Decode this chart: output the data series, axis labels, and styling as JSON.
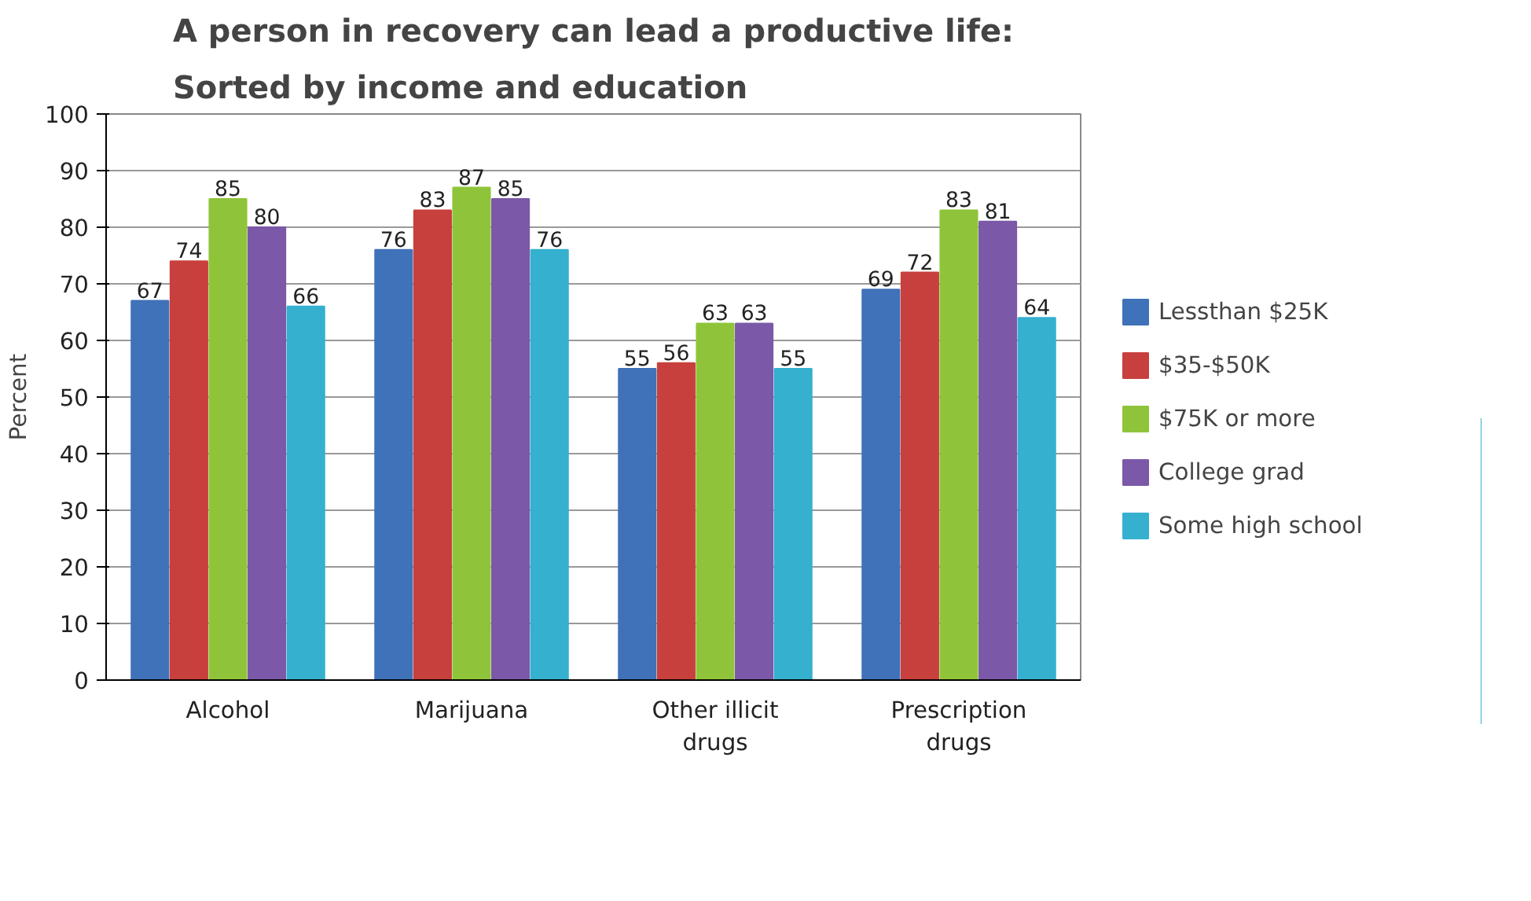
{
  "chart_data": {
    "type": "bar",
    "title": "A person in recovery can lead a productive life: Sorted by income and education",
    "ylabel": "Percent",
    "categories": [
      "Alcohol",
      "Marijuana",
      "Other illicit drugs",
      "Prescription drugs"
    ],
    "series": [
      {
        "name": "Lessthan $25K",
        "color": "#3f72b8",
        "values": [
          67,
          76,
          55,
          69
        ]
      },
      {
        "name": "$35-$50K",
        "color": "#c8403d",
        "values": [
          74,
          83,
          56,
          72
        ]
      },
      {
        "name": "$75K or more",
        "color": "#8fc43a",
        "values": [
          85,
          87,
          63,
          83
        ]
      },
      {
        "name": "College grad",
        "color": "#7c58a8",
        "values": [
          80,
          85,
          63,
          81
        ]
      },
      {
        "name": "Some high school",
        "color": "#35b0cf",
        "values": [
          66,
          76,
          55,
          64
        ]
      }
    ],
    "ylim": [
      0,
      100
    ],
    "yticks": [
      0,
      10,
      20,
      30,
      40,
      50,
      60,
      70,
      80,
      90,
      100
    ],
    "grid": "y",
    "legend": "right",
    "data_labels": true
  }
}
